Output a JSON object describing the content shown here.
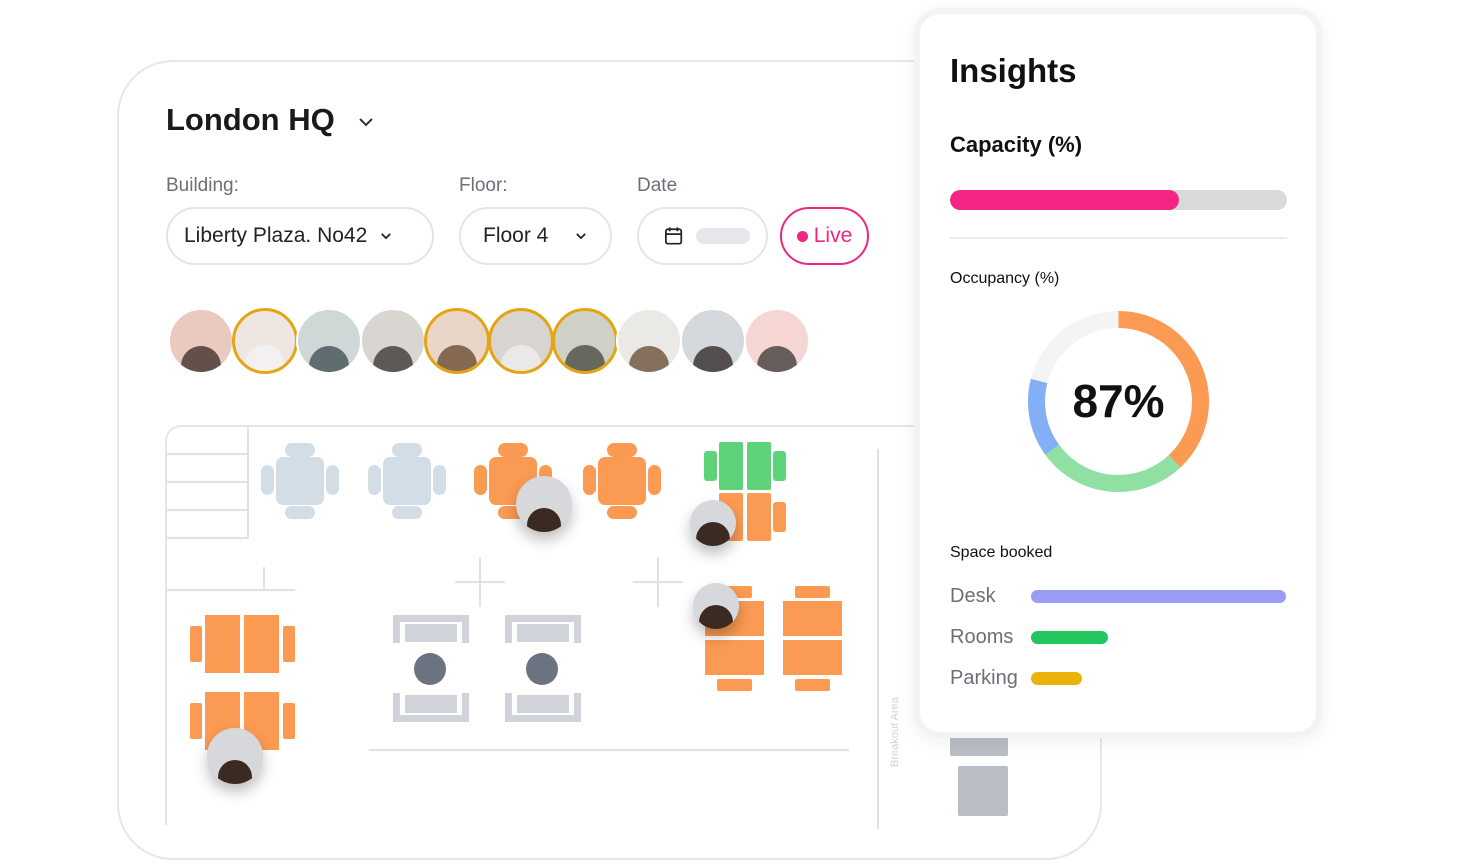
{
  "header": {
    "title": "London HQ"
  },
  "filters": {
    "building_label": "Building:",
    "building_value": "Liberty Plaza. No42",
    "floor_label": "Floor:",
    "floor_value": "Floor 4",
    "date_label": "Date",
    "live_label": "Live"
  },
  "people": {
    "count": 10,
    "highlighted": [
      1,
      4,
      5,
      6
    ]
  },
  "floorplan": {
    "area_label": "Breakout Area"
  },
  "insights": {
    "title": "Insights",
    "capacity_label": "Capacity (%)",
    "capacity_value": 68,
    "occupancy_label": "Occupancy (%)",
    "occupancy_value": "87%",
    "occupancy_segments": [
      {
        "name": "orange",
        "fraction": 0.38,
        "color": "#fb9a52"
      },
      {
        "name": "green",
        "fraction": 0.27,
        "color": "#8fe0a2"
      },
      {
        "name": "blue",
        "fraction": 0.14,
        "color": "#82aff5"
      }
    ],
    "space_booked_label": "Space booked",
    "space": [
      {
        "label": "Desk",
        "value": 100,
        "color": "#9b9cf5"
      },
      {
        "label": "Rooms",
        "value": 30,
        "color": "#22c55e"
      },
      {
        "label": "Parking",
        "value": 20,
        "color": "#eab308"
      }
    ]
  }
}
